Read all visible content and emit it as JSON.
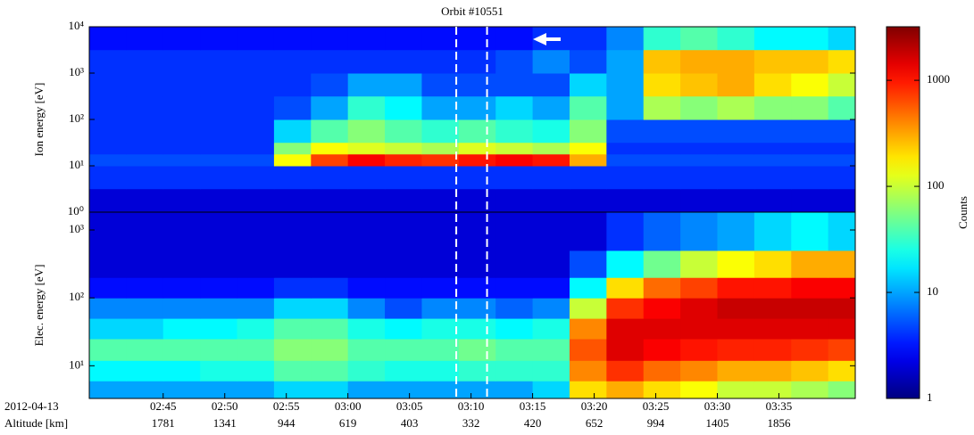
{
  "chart_data": {
    "type": "spectrogram",
    "title": "Orbit #10551",
    "colormap": "jet",
    "xlim": [
      159,
      221.2
    ],
    "xticks": [
      {
        "value": 165,
        "label": "02:45"
      },
      {
        "value": 170,
        "label": "02:50"
      },
      {
        "value": 175,
        "label": "02:55"
      },
      {
        "value": 180,
        "label": "03:00"
      },
      {
        "value": 185,
        "label": "03:05"
      },
      {
        "value": 190,
        "label": "03:10"
      },
      {
        "value": 195,
        "label": "03:15"
      },
      {
        "value": 200,
        "label": "03:20"
      },
      {
        "value": 205,
        "label": "03:25"
      },
      {
        "value": 210,
        "label": "03:30"
      },
      {
        "value": 215,
        "label": "03:35"
      }
    ],
    "x_row_labels": [
      "2012-04-13",
      "Altitude [km]"
    ],
    "altitude_labels": [
      1781,
      1341,
      944,
      619,
      403,
      332,
      420,
      652,
      994,
      1405,
      1856
    ],
    "markers": [
      188.8,
      191.3
    ],
    "time_bins": [
      159,
      162,
      165,
      168,
      171,
      174,
      177,
      180,
      183,
      186,
      189,
      192,
      195,
      198,
      201,
      204,
      207,
      210,
      213,
      216,
      219,
      221.2
    ],
    "panels": [
      {
        "ylabel": "Ion energy [eV]",
        "log_y": true,
        "ylim": [
          1,
          10000
        ],
        "yticks": [
          {
            "value": 1,
            "label": "10⁰"
          },
          {
            "value": 10,
            "label": "10¹"
          },
          {
            "value": 100,
            "label": "10²"
          },
          {
            "value": 1000,
            "label": "10³"
          },
          {
            "value": 10000,
            "label": "10⁴"
          }
        ],
        "energy_bins": [
          1,
          3.2,
          10,
          18,
          32,
          100,
          320,
          1000,
          3200,
          10000
        ],
        "counts": [
          [
            2,
            2,
            2,
            2,
            2,
            2,
            2,
            2,
            2,
            2,
            2,
            2,
            2,
            2,
            2,
            2,
            2,
            2,
            2,
            2,
            2
          ],
          [
            4,
            4,
            4,
            4,
            4,
            4,
            4,
            4,
            4,
            4,
            4,
            4,
            4,
            4,
            4,
            4,
            4,
            4,
            4,
            4,
            4
          ],
          [
            5,
            5,
            5,
            5,
            5,
            150,
            700,
            1200,
            900,
            800,
            1000,
            1200,
            1000,
            300,
            5,
            5,
            5,
            5,
            5,
            5,
            5
          ],
          [
            4,
            4,
            4,
            4,
            4,
            60,
            150,
            120,
            100,
            80,
            120,
            100,
            80,
            150,
            4,
            4,
            4,
            4,
            4,
            4,
            4
          ],
          [
            4,
            4,
            4,
            4,
            4,
            15,
            40,
            60,
            40,
            30,
            40,
            30,
            25,
            60,
            5,
            5,
            5,
            5,
            5,
            5,
            5
          ],
          [
            4,
            4,
            4,
            4,
            4,
            5,
            10,
            30,
            20,
            10,
            10,
            15,
            10,
            40,
            10,
            80,
            60,
            80,
            60,
            60,
            40
          ],
          [
            4,
            4,
            4,
            4,
            4,
            4,
            5,
            10,
            10,
            5,
            5,
            5,
            5,
            15,
            10,
            200,
            250,
            300,
            200,
            150,
            100
          ],
          [
            4,
            4,
            4,
            4,
            4,
            4,
            4,
            4,
            4,
            4,
            4,
            5,
            8,
            5,
            10,
            250,
            300,
            300,
            250,
            250,
            200
          ],
          [
            3,
            3,
            3,
            3,
            3,
            3,
            3,
            3,
            3,
            3,
            3,
            3,
            4,
            4,
            8,
            30,
            40,
            30,
            20,
            20,
            15
          ]
        ]
      },
      {
        "ylabel": "Elec. energy [eV]",
        "log_y": true,
        "ylim": [
          3.3,
          1830
        ],
        "yticks": [
          {
            "value": 10,
            "label": "10¹"
          },
          {
            "value": 100,
            "label": "10²"
          },
          {
            "value": 1000,
            "label": "10³"
          }
        ],
        "energy_bins": [
          3.3,
          6,
          12,
          25,
          50,
          100,
          200,
          500,
          1830
        ],
        "counts": [
          [
            10,
            10,
            10,
            10,
            10,
            15,
            15,
            10,
            10,
            10,
            10,
            10,
            15,
            200,
            300,
            200,
            150,
            100,
            100,
            80,
            60
          ],
          [
            20,
            20,
            20,
            25,
            25,
            40,
            40,
            30,
            25,
            25,
            30,
            30,
            30,
            400,
            800,
            500,
            400,
            300,
            300,
            250,
            200
          ],
          [
            40,
            40,
            40,
            40,
            40,
            60,
            60,
            40,
            40,
            40,
            50,
            40,
            40,
            600,
            1500,
            1200,
            1000,
            900,
            900,
            800,
            700
          ],
          [
            15,
            15,
            20,
            20,
            25,
            40,
            40,
            25,
            20,
            25,
            25,
            20,
            25,
            400,
            1500,
            1500,
            1500,
            1500,
            1500,
            1500,
            1500
          ],
          [
            8,
            8,
            8,
            8,
            8,
            15,
            15,
            8,
            5,
            8,
            8,
            6,
            8,
            100,
            800,
            1200,
            1500,
            1800,
            1800,
            1800,
            1800
          ],
          [
            3,
            3,
            3,
            3,
            3,
            4,
            4,
            3,
            3,
            3,
            3,
            3,
            3,
            20,
            200,
            500,
            700,
            1000,
            1000,
            1200,
            1200
          ],
          [
            2,
            2,
            2,
            2,
            2,
            2,
            2,
            2,
            2,
            2,
            2,
            2,
            2,
            5,
            20,
            50,
            100,
            150,
            200,
            300,
            300
          ],
          [
            2,
            2,
            2,
            2,
            2,
            2,
            2,
            2,
            2,
            2,
            2,
            2,
            2,
            2,
            4,
            6,
            8,
            10,
            15,
            20,
            15
          ]
        ]
      }
    ],
    "colorbar": {
      "label": "Counts",
      "log": true,
      "clim": [
        1,
        3200
      ],
      "ticks": [
        1,
        10,
        100,
        1000
      ]
    }
  }
}
